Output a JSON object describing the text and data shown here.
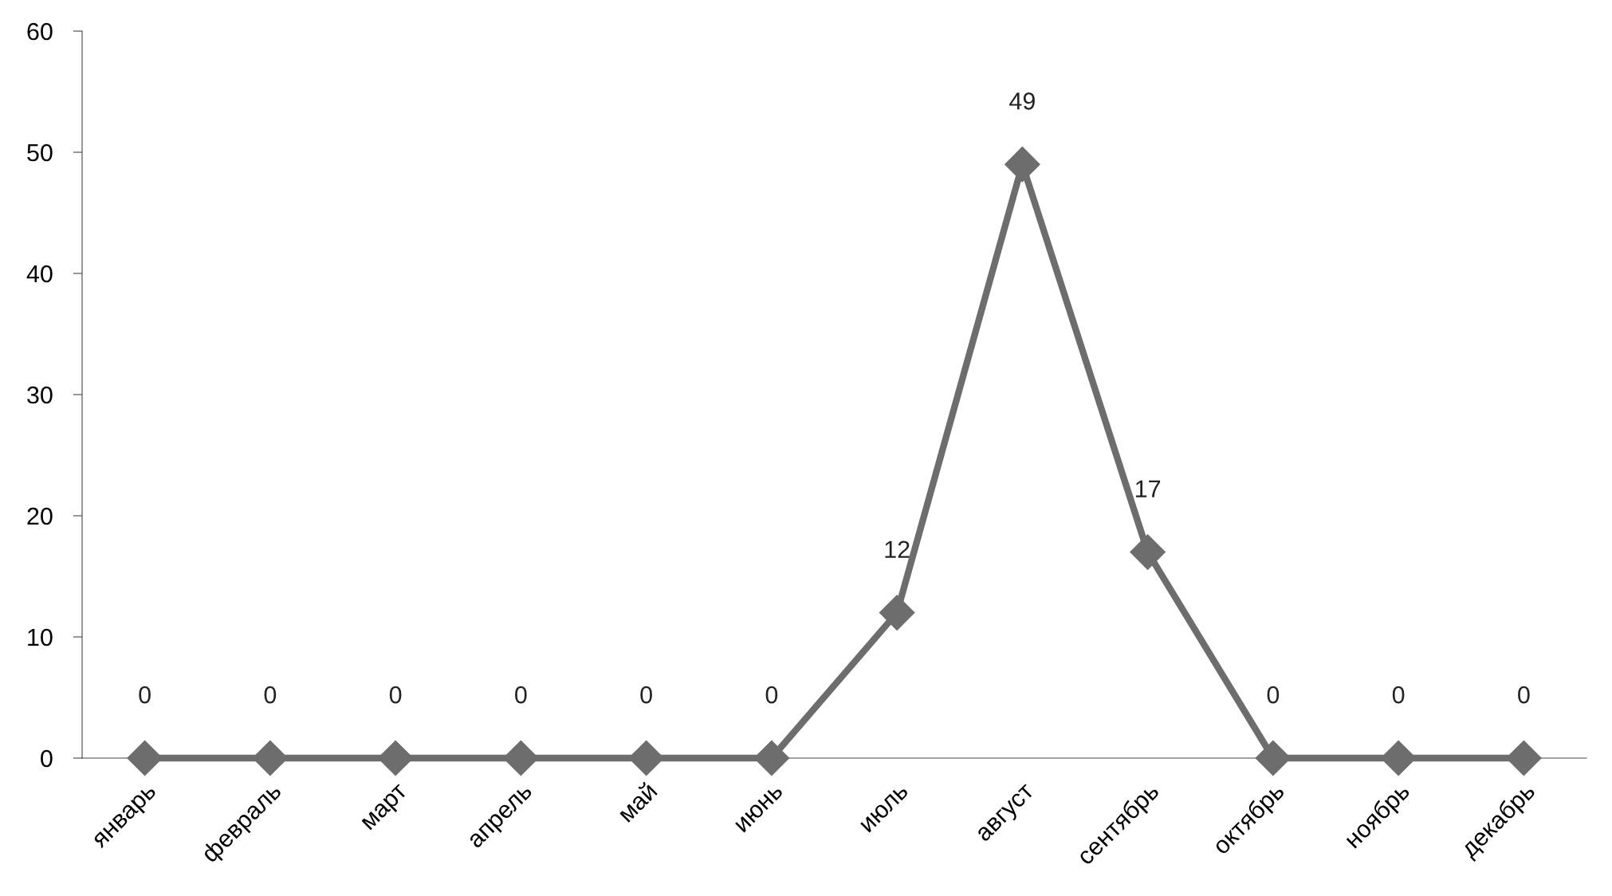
{
  "chart_data": {
    "type": "line",
    "categories": [
      "январь",
      "февраль",
      "март",
      "апрель",
      "май",
      "июнь",
      "июль",
      "август",
      "сентябрь",
      "октябрь",
      "ноябрь",
      "декабрь"
    ],
    "series": [
      {
        "color": "#6d6d6d",
        "values": [
          0,
          0,
          0,
          0,
          0,
          0,
          12,
          49,
          17,
          0,
          0,
          0
        ]
      }
    ],
    "ylim": [
      0,
      60
    ],
    "yticks": [
      0,
      10,
      20,
      30,
      40,
      50,
      60
    ],
    "marker": "diamond",
    "line_style": "solid",
    "grid": false,
    "data_labels": true
  }
}
